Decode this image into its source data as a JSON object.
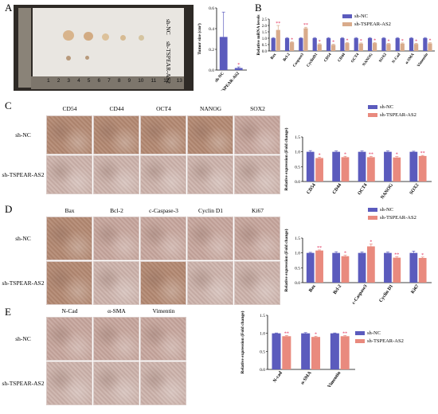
{
  "colors": {
    "nc": "#5b5bbd",
    "tsp": "#d9ab8b",
    "tsp_c": "#e98a7e",
    "ihc_nc": "#c7a79e",
    "ihc_tsp": "#cdb4ad",
    "ihc_dark": "#b38972",
    "star": "#e0305a"
  },
  "panels": {
    "A": {
      "label": "A"
    },
    "B": {
      "label": "B"
    },
    "C": {
      "label": "C"
    },
    "D": {
      "label": "D"
    },
    "E": {
      "label": "E"
    }
  },
  "photo_A": {
    "row1_label": "sh-NC",
    "row2_label": "sh-TSPEAR-AS2",
    "ruler_numbers": [
      "1",
      "2",
      "3",
      "4",
      "5",
      "6",
      "7",
      "8",
      "9",
      "10",
      "11",
      "12",
      "13"
    ]
  },
  "ihc": {
    "C": {
      "columns": [
        "CD54",
        "CD44",
        "OCT4",
        "NANOG",
        "SOX2"
      ],
      "rows": [
        "sh-NC",
        "sh-TSPEAR-AS2"
      ]
    },
    "D": {
      "columns": [
        "Bax",
        "Bcl-2",
        "c-Caspase-3",
        "Cyclin D1",
        "Ki67"
      ],
      "rows": [
        "sh-NC",
        "sh-TSPEAR-AS2"
      ]
    },
    "E": {
      "columns": [
        "N-Cad",
        "α-SMA",
        "Vimentin"
      ],
      "rows": [
        "sh-NC",
        "sh-TSPEAR-AS2"
      ]
    }
  },
  "chart_data": [
    {
      "id": "A_tumor_size",
      "type": "bar",
      "categories": [
        "sh-NC",
        "sh-TSPEAR-AS2"
      ],
      "values": [
        0.32,
        0.02
      ],
      "errors": [
        0.24,
        0.01
      ],
      "ylabel": "Tumor size (cm³)",
      "ylim": [
        0,
        0.6
      ],
      "yticks": [
        "0.0",
        "0.2",
        "0.4",
        "0.6"
      ],
      "annotations": [
        "",
        "*"
      ]
    },
    {
      "id": "B_mrna",
      "type": "bar",
      "categories": [
        "Bax",
        "Bcl-2",
        "Caspase3",
        "CyclinD1",
        "CD54",
        "CD44",
        "OCT4",
        "NANOG",
        "SOX2",
        "N-Cad",
        "α-SMA",
        "Vimentin"
      ],
      "series": [
        {
          "name": "sh-NC",
          "values": [
            1.0,
            1.0,
            1.0,
            1.0,
            1.0,
            1.0,
            1.0,
            1.0,
            1.0,
            1.0,
            1.0,
            1.0
          ],
          "errors": [
            0.05,
            0.05,
            0.05,
            0.05,
            0.05,
            0.05,
            0.05,
            0.05,
            0.05,
            0.05,
            0.05,
            0.05
          ]
        },
        {
          "name": "sh-TSPEAR-AS2",
          "values": [
            1.65,
            0.68,
            1.78,
            0.52,
            0.48,
            0.62,
            0.58,
            0.62,
            0.55,
            0.58,
            0.55,
            0.6
          ],
          "errors": [
            0.35,
            0.05,
            0.08,
            0.05,
            0.05,
            0.05,
            0.05,
            0.05,
            0.05,
            0.05,
            0.05,
            0.05
          ]
        }
      ],
      "ylabel": "Relative mRNA levels",
      "ylim": [
        0,
        2.5
      ],
      "yticks": [
        "0.0",
        "0.5",
        "1.0",
        "1.5",
        "2.0",
        "2.5"
      ],
      "annotations": [
        "**",
        "*",
        "**",
        "*",
        "*",
        "*",
        "*",
        "*",
        "*",
        "*",
        "*",
        "*"
      ],
      "legend": [
        "sh-NC",
        "sh-TSPEAR-AS2"
      ]
    },
    {
      "id": "C_ihc",
      "type": "bar",
      "categories": [
        "CD54",
        "CD44",
        "OCT4",
        "NANOG",
        "SOX2"
      ],
      "series": [
        {
          "name": "sh-NC",
          "values": [
            1.0,
            1.0,
            1.0,
            1.0,
            1.0
          ],
          "errors": [
            0.04,
            0.03,
            0.03,
            0.03,
            0.02
          ]
        },
        {
          "name": "sh-TSPEAR-AS2",
          "values": [
            0.79,
            0.82,
            0.82,
            0.81,
            0.86
          ],
          "errors": [
            0.03,
            0.03,
            0.03,
            0.03,
            0.02
          ]
        }
      ],
      "ylabel": "Relative expression (Fold change)",
      "ylim": [
        0,
        1.5
      ],
      "yticks": [
        "0.0",
        "0.5",
        "1.0",
        "1.5"
      ],
      "annotations": [
        "*",
        "*",
        "**",
        "*",
        "**"
      ],
      "legend": [
        "sh-NC",
        "sh-TSPEAR-AS2"
      ]
    },
    {
      "id": "D_ihc",
      "type": "bar",
      "categories": [
        "Bax",
        "Bcl-2",
        "c-Caspase3",
        "Cyclin D1",
        "Ki67"
      ],
      "series": [
        {
          "name": "sh-NC",
          "values": [
            1.0,
            1.0,
            1.0,
            1.0,
            1.0
          ],
          "errors": [
            0.02,
            0.04,
            0.03,
            0.03,
            0.06
          ]
        },
        {
          "name": "sh-TSPEAR-AS2",
          "values": [
            1.08,
            0.89,
            1.22,
            0.84,
            0.83
          ],
          "errors": [
            0.02,
            0.03,
            0.08,
            0.03,
            0.03
          ]
        }
      ],
      "ylabel": "Relative expression (Fold change)",
      "ylim": [
        0,
        1.5
      ],
      "yticks": [
        "0.0",
        "0.5",
        "1.0",
        "1.5"
      ],
      "annotations": [
        "**",
        "*",
        "*",
        "**",
        "*"
      ],
      "legend": [
        "sh-NC",
        "sh-TSPEAR-AS2"
      ]
    },
    {
      "id": "E_ihc",
      "type": "bar",
      "categories": [
        "N-cad",
        "α-SMA",
        "Vimentin"
      ],
      "series": [
        {
          "name": "sh-NC",
          "values": [
            1.0,
            1.0,
            1.0
          ],
          "errors": [
            0.01,
            0.02,
            0.01
          ]
        },
        {
          "name": "sh-TSPEAR-AS2",
          "values": [
            0.92,
            0.9,
            0.92
          ],
          "errors": [
            0.02,
            0.02,
            0.02
          ]
        }
      ],
      "ylabel": "Relative expression (Fold change)",
      "ylim": [
        0,
        1.5
      ],
      "yticks": [
        "0.0",
        "0.5",
        "1.0",
        "1.5"
      ],
      "annotations": [
        "**",
        "*",
        "**"
      ],
      "legend": [
        "sh-NC",
        "sh-TSPEAR-AS2"
      ]
    }
  ]
}
